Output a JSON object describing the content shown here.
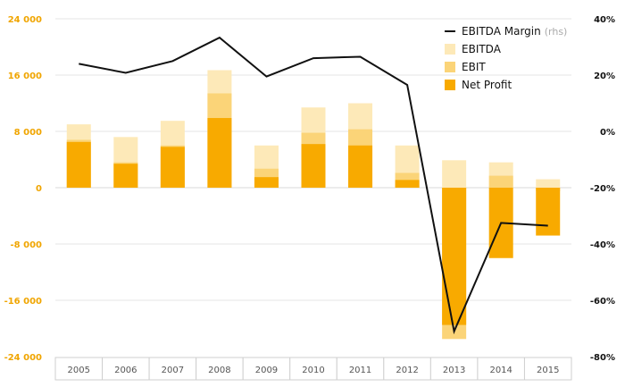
{
  "chart_data": {
    "type": "bar",
    "categories": [
      "2005",
      "2006",
      "2007",
      "2008",
      "2009",
      "2010",
      "2011",
      "2012",
      "2013",
      "2014",
      "2015"
    ],
    "series": [
      {
        "name": "EBITDA",
        "kind": "bar",
        "axis": "left",
        "color": "#fde9b8",
        "values": [
          9000,
          7200,
          9500,
          16700,
          6000,
          11400,
          12000,
          6000,
          3900,
          3600,
          1200
        ]
      },
      {
        "name": "EBIT",
        "kind": "bar",
        "axis": "left",
        "color": "#fbd478",
        "values": [
          6800,
          3600,
          6000,
          13400,
          2700,
          7800,
          8300,
          2100,
          -21500,
          1700,
          -500
        ]
      },
      {
        "name": "Net Profit",
        "kind": "bar",
        "axis": "left",
        "color": "#f8aa00",
        "values": [
          6500,
          3400,
          5800,
          9900,
          1500,
          6200,
          6000,
          1100,
          -19500,
          -10000,
          -6800
        ]
      },
      {
        "name": "EBITDA Margin",
        "kind": "line",
        "axis": "right",
        "color": "#111111",
        "values": [
          24,
          20.8,
          25,
          33.3,
          19.5,
          26,
          26.5,
          16.5,
          -71,
          -32.5,
          -33.5
        ]
      }
    ],
    "y_left": {
      "min": -24000,
      "max": 24000,
      "ticks": [
        24000,
        16000,
        8000,
        0,
        -8000,
        -16000,
        -24000
      ],
      "tick_labels": [
        "24 000",
        "16 000",
        "8 000",
        "0",
        "-8 000",
        "-16 000",
        "-24 000"
      ]
    },
    "y_right": {
      "min": -80,
      "max": 40,
      "ticks": [
        40,
        20,
        0,
        -20,
        -40,
        -60,
        -80
      ],
      "tick_labels": [
        "40%",
        "20%",
        "0%",
        "-20%",
        "-40%",
        "-60%",
        "-80%"
      ]
    },
    "legend": [
      {
        "label": "EBITDA Margin",
        "note": "(rhs)",
        "marker": "line",
        "color": "#111111"
      },
      {
        "label": "EBITDA",
        "note": "",
        "marker": "box",
        "color": "#fde9b8"
      },
      {
        "label": "EBIT",
        "note": "",
        "marker": "box",
        "color": "#fbd478"
      },
      {
        "label": "Net Profit",
        "note": "",
        "marker": "box",
        "color": "#f8aa00"
      }
    ],
    "legend_position": "top-right",
    "grid": true,
    "title": "",
    "xlabel": "",
    "ylabel": ""
  }
}
